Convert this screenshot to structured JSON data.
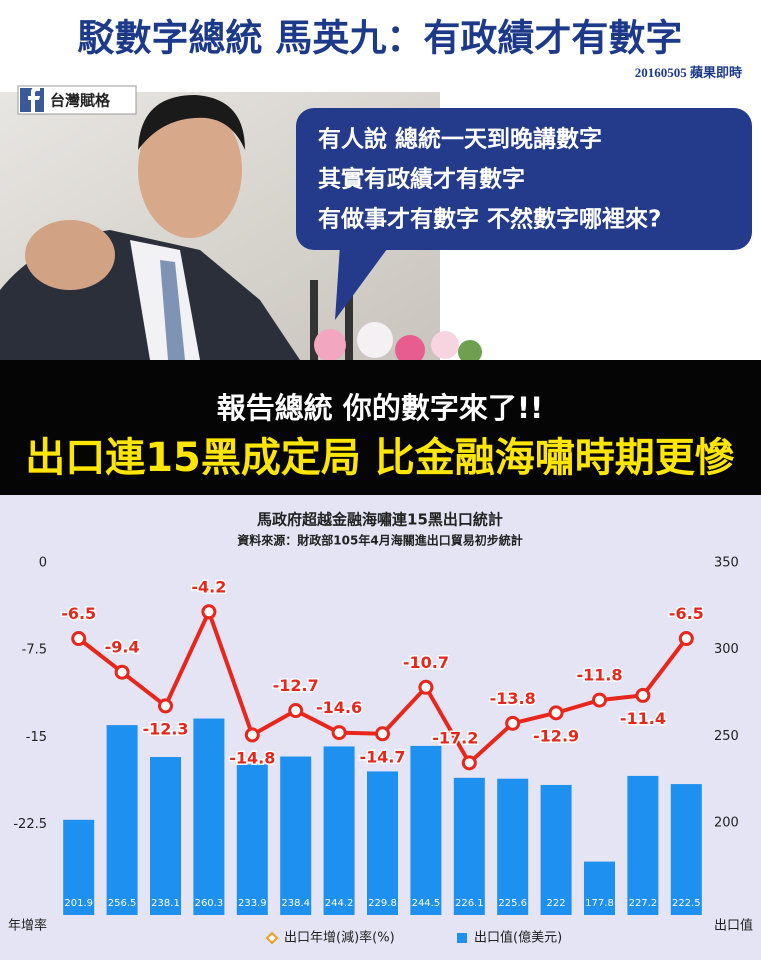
{
  "header": {
    "title": "駁數字總統 馬英九：有政績才有數字",
    "source": "20160505 蘋果即時",
    "badge": "台灣賦格"
  },
  "bubble": {
    "lines": [
      "有人說 總統一天到晚講數字",
      "其實有政績才有數字",
      "有做事才有數字 不然數字哪裡來?"
    ]
  },
  "banner": {
    "line1": "報告總統 你的數字來了!!",
    "line2": "出口連15黑成定局 比金融海嘯時期更慘"
  },
  "chart_data": {
    "type": "combo",
    "title": "馬政府超越金融海嘯連15黑出口統計",
    "subtitle": "資料來源：財政部105年4月海關進出口貿易初步統計",
    "categories": [
      null,
      null,
      null,
      null,
      null,
      null,
      null,
      null,
      null,
      null,
      null,
      null,
      null,
      null,
      null
    ],
    "series": [
      {
        "name": "出口值(億美元)",
        "type": "bar",
        "axis": "y2",
        "color": "#1e90f0",
        "values": [
          201.9,
          256.5,
          238.1,
          260.3,
          233.9,
          238.4,
          244.2,
          229.8,
          244.5,
          226.1,
          225.6,
          222,
          177.8,
          227.2,
          222.5
        ]
      },
      {
        "name": "出口年增(減)率(%)",
        "type": "line",
        "color": "#e8261c",
        "values": [
          -6.5,
          -9.4,
          -12.3,
          -4.2,
          -14.8,
          -12.7,
          -14.6,
          -14.7,
          -10.7,
          -17.2,
          -13.8,
          -12.9,
          -11.8,
          -11.4,
          -6.5
        ]
      }
    ],
    "ylim": [
      -30.3,
      0
    ],
    "yticks": [
      0,
      -7.5,
      -15,
      -22.5
    ],
    "y2lim": [
      147,
      350
    ],
    "y2ticks": [
      200,
      250,
      300,
      350
    ],
    "ylabel": "年增率",
    "y2label": "出口值"
  }
}
